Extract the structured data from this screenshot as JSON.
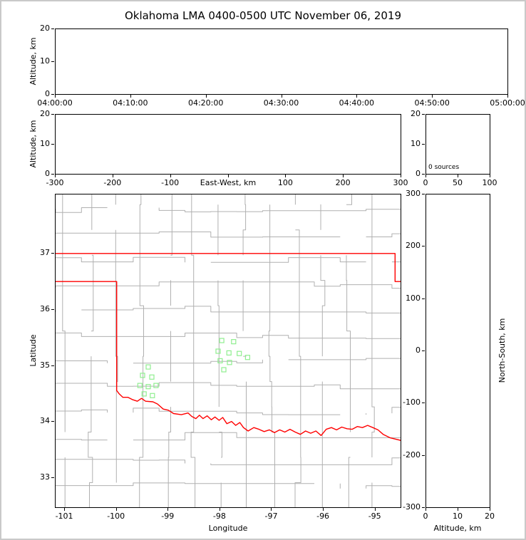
{
  "title": "Oklahoma LMA 0400-0500 UTC November 06, 2019",
  "colors": {
    "state_border": "#ff0000",
    "county_lines": "#b0b0b0",
    "station_marker": "#90ee90",
    "axes_frame": "#000000",
    "background": "#ffffff",
    "figure_border": "#c9c9c9"
  },
  "chart_data": [
    {
      "id": "time_height",
      "type": "scatter",
      "xlabel": "",
      "ylabel": "Altitude, km",
      "xlim": [
        0,
        60
      ],
      "ylim": [
        0,
        20
      ],
      "x_ticks": {
        "values": [
          0,
          10,
          20,
          30,
          40,
          50,
          60
        ],
        "labels": [
          "04:00:00",
          "04:10:00",
          "04:20:00",
          "04:30:00",
          "04:40:00",
          "04:50:00",
          "05:00:00"
        ]
      },
      "y_ticks": {
        "values": [
          0,
          10,
          20
        ],
        "labels": [
          "0",
          "10",
          "20"
        ]
      },
      "series": []
    },
    {
      "id": "ew_height",
      "type": "scatter",
      "xlabel": "East-West, km",
      "ylabel": "Altitude, km",
      "xlim": [
        -300,
        300
      ],
      "ylim": [
        0,
        20
      ],
      "x_ticks": {
        "values": [
          -300,
          -200,
          -100,
          0,
          100,
          200,
          300
        ],
        "labels": [
          "-300",
          "-200",
          "-100",
          "",
          "100",
          "200",
          "300"
        ]
      },
      "y_ticks": {
        "values": [
          0,
          10,
          20
        ],
        "labels": [
          "0",
          "10",
          "20"
        ]
      },
      "series": []
    },
    {
      "id": "altitude_histogram",
      "type": "line",
      "xlabel": "",
      "ylabel": "",
      "annotation": "0 sources",
      "xlim": [
        0,
        100
      ],
      "ylim": [
        0,
        20
      ],
      "x_ticks": {
        "values": [
          0,
          50,
          100
        ],
        "labels": [
          "0",
          "50",
          "100"
        ]
      },
      "y_ticks": {
        "values": [
          0,
          10,
          20
        ],
        "labels": [
          "0",
          "10",
          "20"
        ]
      },
      "series": []
    },
    {
      "id": "plan_view_map",
      "type": "scatter",
      "xlabel": "Longitude",
      "ylabel": "Latitude",
      "xlim": [
        -101.18,
        -94.5
      ],
      "ylim": [
        32.47,
        38.05
      ],
      "x_ticks": {
        "values": [
          -101,
          -100,
          -99,
          -98,
          -97,
          -96,
          -95
        ],
        "labels": [
          "-101",
          "-100",
          "-99",
          "-98",
          "-97",
          "-96",
          "-95"
        ]
      },
      "y_ticks": {
        "values": [
          37,
          36,
          35,
          34,
          33
        ],
        "labels": [
          "37",
          "36",
          "35",
          "34",
          "33"
        ]
      },
      "stations": [
        [
          -97.97,
          35.45
        ],
        [
          -97.74,
          35.43
        ],
        [
          -98.04,
          35.26
        ],
        [
          -97.83,
          35.23
        ],
        [
          -97.63,
          35.22
        ],
        [
          -98.0,
          35.09
        ],
        [
          -97.82,
          35.06
        ],
        [
          -97.93,
          34.93
        ],
        [
          -97.47,
          35.15
        ],
        [
          -99.39,
          34.98
        ],
        [
          -99.5,
          34.83
        ],
        [
          -99.32,
          34.8
        ],
        [
          -99.55,
          34.65
        ],
        [
          -99.39,
          34.63
        ],
        [
          -99.24,
          34.65
        ],
        [
          -99.47,
          34.5
        ],
        [
          -99.31,
          34.47
        ]
      ],
      "state_border": [
        [
          [
            -101.18,
            37.0
          ],
          [
            -94.62,
            37.0
          ],
          [
            -94.62,
            36.5
          ],
          [
            -94.5,
            36.5
          ]
        ],
        [
          [
            -101.18,
            36.5
          ],
          [
            -100.0,
            36.5
          ],
          [
            -100.0,
            34.56
          ],
          [
            -99.95,
            34.5
          ],
          [
            -99.88,
            34.44
          ],
          [
            -99.78,
            34.44
          ],
          [
            -99.7,
            34.4
          ],
          [
            -99.6,
            34.37
          ],
          [
            -99.52,
            34.42
          ],
          [
            -99.44,
            34.37
          ],
          [
            -99.3,
            34.36
          ],
          [
            -99.21,
            34.32
          ],
          [
            -99.1,
            34.23
          ],
          [
            -99.0,
            34.21
          ],
          [
            -98.9,
            34.15
          ],
          [
            -98.75,
            34.13
          ],
          [
            -98.62,
            34.16
          ],
          [
            -98.55,
            34.1
          ],
          [
            -98.47,
            34.06
          ],
          [
            -98.4,
            34.12
          ],
          [
            -98.33,
            34.06
          ],
          [
            -98.25,
            34.11
          ],
          [
            -98.17,
            34.04
          ],
          [
            -98.1,
            34.09
          ],
          [
            -98.02,
            34.03
          ],
          [
            -97.95,
            34.08
          ],
          [
            -97.87,
            33.97
          ],
          [
            -97.78,
            34.01
          ],
          [
            -97.7,
            33.94
          ],
          [
            -97.62,
            33.99
          ],
          [
            -97.55,
            33.9
          ],
          [
            -97.46,
            33.84
          ],
          [
            -97.35,
            33.9
          ],
          [
            -97.25,
            33.87
          ],
          [
            -97.15,
            33.83
          ],
          [
            -97.05,
            33.86
          ],
          [
            -96.95,
            33.81
          ],
          [
            -96.85,
            33.86
          ],
          [
            -96.75,
            33.82
          ],
          [
            -96.65,
            33.87
          ],
          [
            -96.55,
            33.82
          ],
          [
            -96.45,
            33.78
          ],
          [
            -96.35,
            33.84
          ],
          [
            -96.25,
            33.8
          ],
          [
            -96.15,
            33.84
          ],
          [
            -96.05,
            33.76
          ],
          [
            -95.95,
            33.87
          ],
          [
            -95.85,
            33.9
          ],
          [
            -95.75,
            33.86
          ],
          [
            -95.65,
            33.91
          ],
          [
            -95.55,
            33.88
          ],
          [
            -95.45,
            33.87
          ],
          [
            -95.35,
            33.92
          ],
          [
            -95.25,
            33.9
          ],
          [
            -95.15,
            33.94
          ],
          [
            -95.05,
            33.9
          ],
          [
            -94.95,
            33.86
          ],
          [
            -94.85,
            33.78
          ],
          [
            -94.72,
            33.72
          ],
          [
            -94.5,
            33.67
          ]
        ]
      ],
      "county_grid": {
        "lon_step": 0.5,
        "lat_step": 0.45,
        "seed": 11,
        "jitter": 0.07
      }
    },
    {
      "id": "ns_height",
      "type": "scatter",
      "xlabel": "Altitude, km",
      "ylabel": "North-South, km",
      "xlim": [
        0,
        20
      ],
      "ylim": [
        -300,
        300
      ],
      "x_ticks": {
        "values": [
          0,
          10,
          20
        ],
        "labels": [
          "0",
          "10",
          "20"
        ]
      },
      "y_ticks": {
        "values": [
          300,
          200,
          100,
          0,
          -100,
          -200,
          -300
        ],
        "labels": [
          "300",
          "200",
          "100",
          "0",
          "-100",
          "-200",
          "-300"
        ]
      },
      "series": []
    }
  ]
}
